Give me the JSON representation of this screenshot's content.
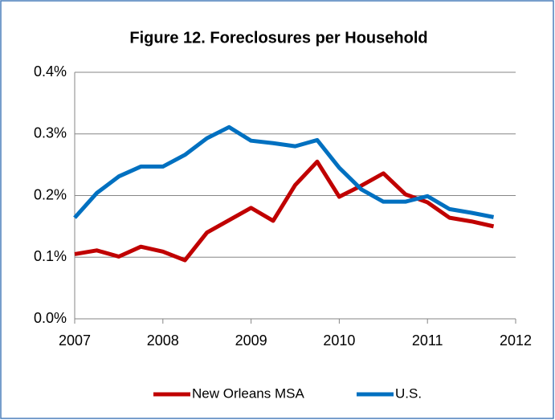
{
  "chart_data": {
    "type": "line",
    "title": "Figure 12. Foreclosures per Household",
    "x": [
      2007,
      2007.25,
      2007.5,
      2007.75,
      2008,
      2008.25,
      2008.5,
      2008.75,
      2009,
      2009.25,
      2009.5,
      2009.75,
      2010,
      2010.25,
      2010.5,
      2010.75,
      2011,
      2011.25,
      2011.5,
      2011.75
    ],
    "series": [
      {
        "name": "New Orleans MSA",
        "color": "#c00000",
        "values": [
          0.105,
          0.111,
          0.101,
          0.117,
          0.109,
          0.095,
          0.14,
          0.16,
          0.18,
          0.159,
          0.217,
          0.255,
          0.198,
          0.216,
          0.236,
          0.202,
          0.189,
          0.164,
          0.158,
          0.15
        ]
      },
      {
        "name": "U.S.",
        "color": "#0070c0",
        "values": [
          0.164,
          0.204,
          0.231,
          0.247,
          0.247,
          0.266,
          0.293,
          0.311,
          0.289,
          0.285,
          0.28,
          0.29,
          0.245,
          0.21,
          0.19,
          0.19,
          0.199,
          0.178,
          0.172,
          0.165
        ]
      }
    ],
    "xlim": [
      2007,
      2012
    ],
    "xticks": [
      2007,
      2008,
      2009,
      2010,
      2011,
      2012
    ],
    "ylim": [
      0,
      0.4
    ],
    "yticks": [
      {
        "value": 0,
        "label": "0.0%"
      },
      {
        "value": 0.1,
        "label": "0.1%"
      },
      {
        "value": 0.2,
        "label": "0.2%"
      },
      {
        "value": 0.3,
        "label": "0.3%"
      },
      {
        "value": 0.4,
        "label": "0.4%"
      }
    ],
    "grid": true,
    "legend": "bottom"
  }
}
